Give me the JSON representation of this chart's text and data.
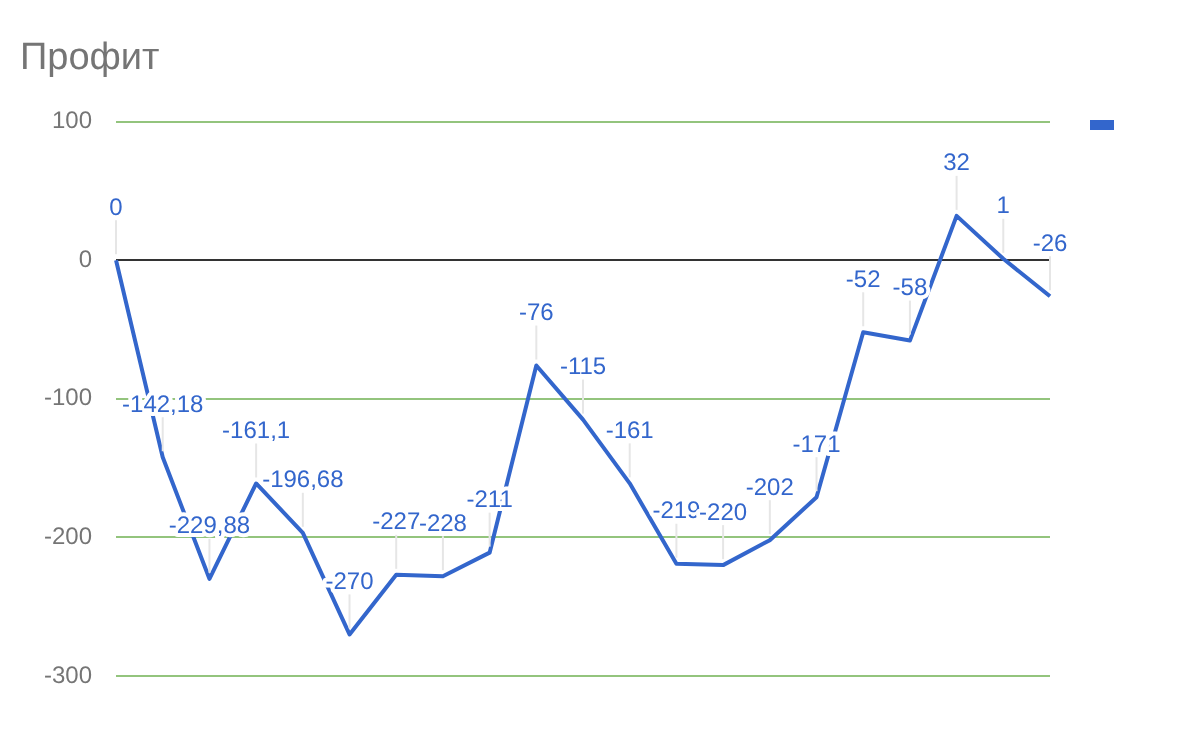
{
  "chart_data": {
    "type": "line",
    "title": "Профит",
    "categories": [
      null,
      null,
      null,
      null,
      null,
      null,
      null,
      null,
      null,
      null,
      null,
      null,
      null,
      null,
      null,
      null,
      null,
      null,
      null,
      null,
      null
    ],
    "series": [
      {
        "color": "#3366cc",
        "values": [
          0,
          -142.18,
          -229.88,
          -161.1,
          -196.68,
          -270,
          -227,
          -228,
          -211,
          -76,
          -115,
          -161,
          -219,
          -220,
          -202,
          -171,
          -52,
          -58,
          32,
          1,
          -26
        ],
        "value_labels": [
          "0",
          "-142,18",
          "-229,88",
          "-161,1",
          "-196,68",
          "-270",
          "-227",
          "-228",
          "-211",
          "-76",
          "-115",
          "-161",
          "-219",
          "-220",
          "-202",
          "-171",
          "-52",
          "-58",
          "32",
          "1",
          "-26"
        ]
      }
    ],
    "ylim": [
      -300,
      100
    ],
    "yticks": [
      -300,
      -200,
      -100,
      0,
      100
    ],
    "grid": "y",
    "tick_labels": "y",
    "marker": "none",
    "line_style": "solid"
  }
}
